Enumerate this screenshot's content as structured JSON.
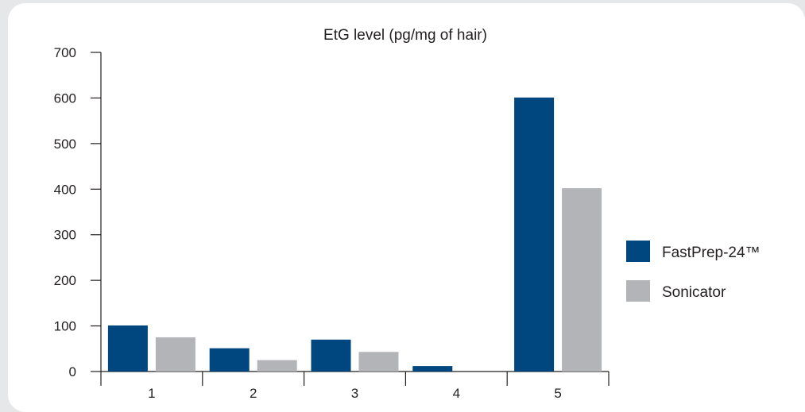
{
  "chart_data": {
    "type": "bar",
    "title": "EtG level (pg/mg of hair)",
    "xlabel": "",
    "ylabel": "",
    "categories": [
      "1",
      "2",
      "3",
      "4",
      "5"
    ],
    "series": [
      {
        "name": "FastPrep-24™",
        "color": "#00467f",
        "values": [
          101,
          51,
          70,
          12,
          601
        ]
      },
      {
        "name": "Sonicator",
        "color": "#b3b4b7",
        "values": [
          75,
          25,
          43,
          0,
          402
        ]
      }
    ],
    "ylim": [
      0,
      700
    ],
    "yticks": [
      0,
      100,
      200,
      300,
      400,
      500,
      600,
      700
    ],
    "grid": false,
    "legend": "right"
  }
}
